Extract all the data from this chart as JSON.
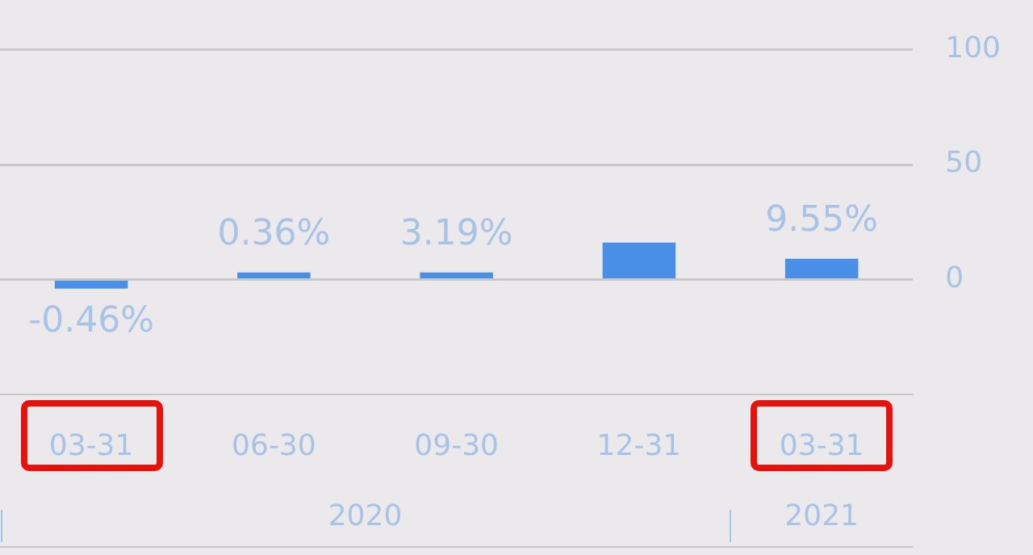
{
  "chart_data": {
    "type": "bar",
    "categories": [
      "03-31",
      "06-30",
      "09-30",
      "12-31",
      "03-31"
    ],
    "values": [
      -4,
      3,
      3,
      16,
      9
    ],
    "color": "#4a8fe7",
    "ylim": [
      -50,
      100
    ],
    "yticks": [
      0,
      50,
      100
    ],
    "grid": "y",
    "annotations": [
      {
        "text": "-0.46%",
        "x": "03-31",
        "y": -4
      },
      {
        "text": "0.36%",
        "x": "06-30",
        "y": 3
      },
      {
        "text": "3.19%",
        "x": "09-30",
        "y": 3
      },
      {
        "text": "9.55%",
        "y": 9
      },
      "2020",
      "2021"
    ]
  }
}
